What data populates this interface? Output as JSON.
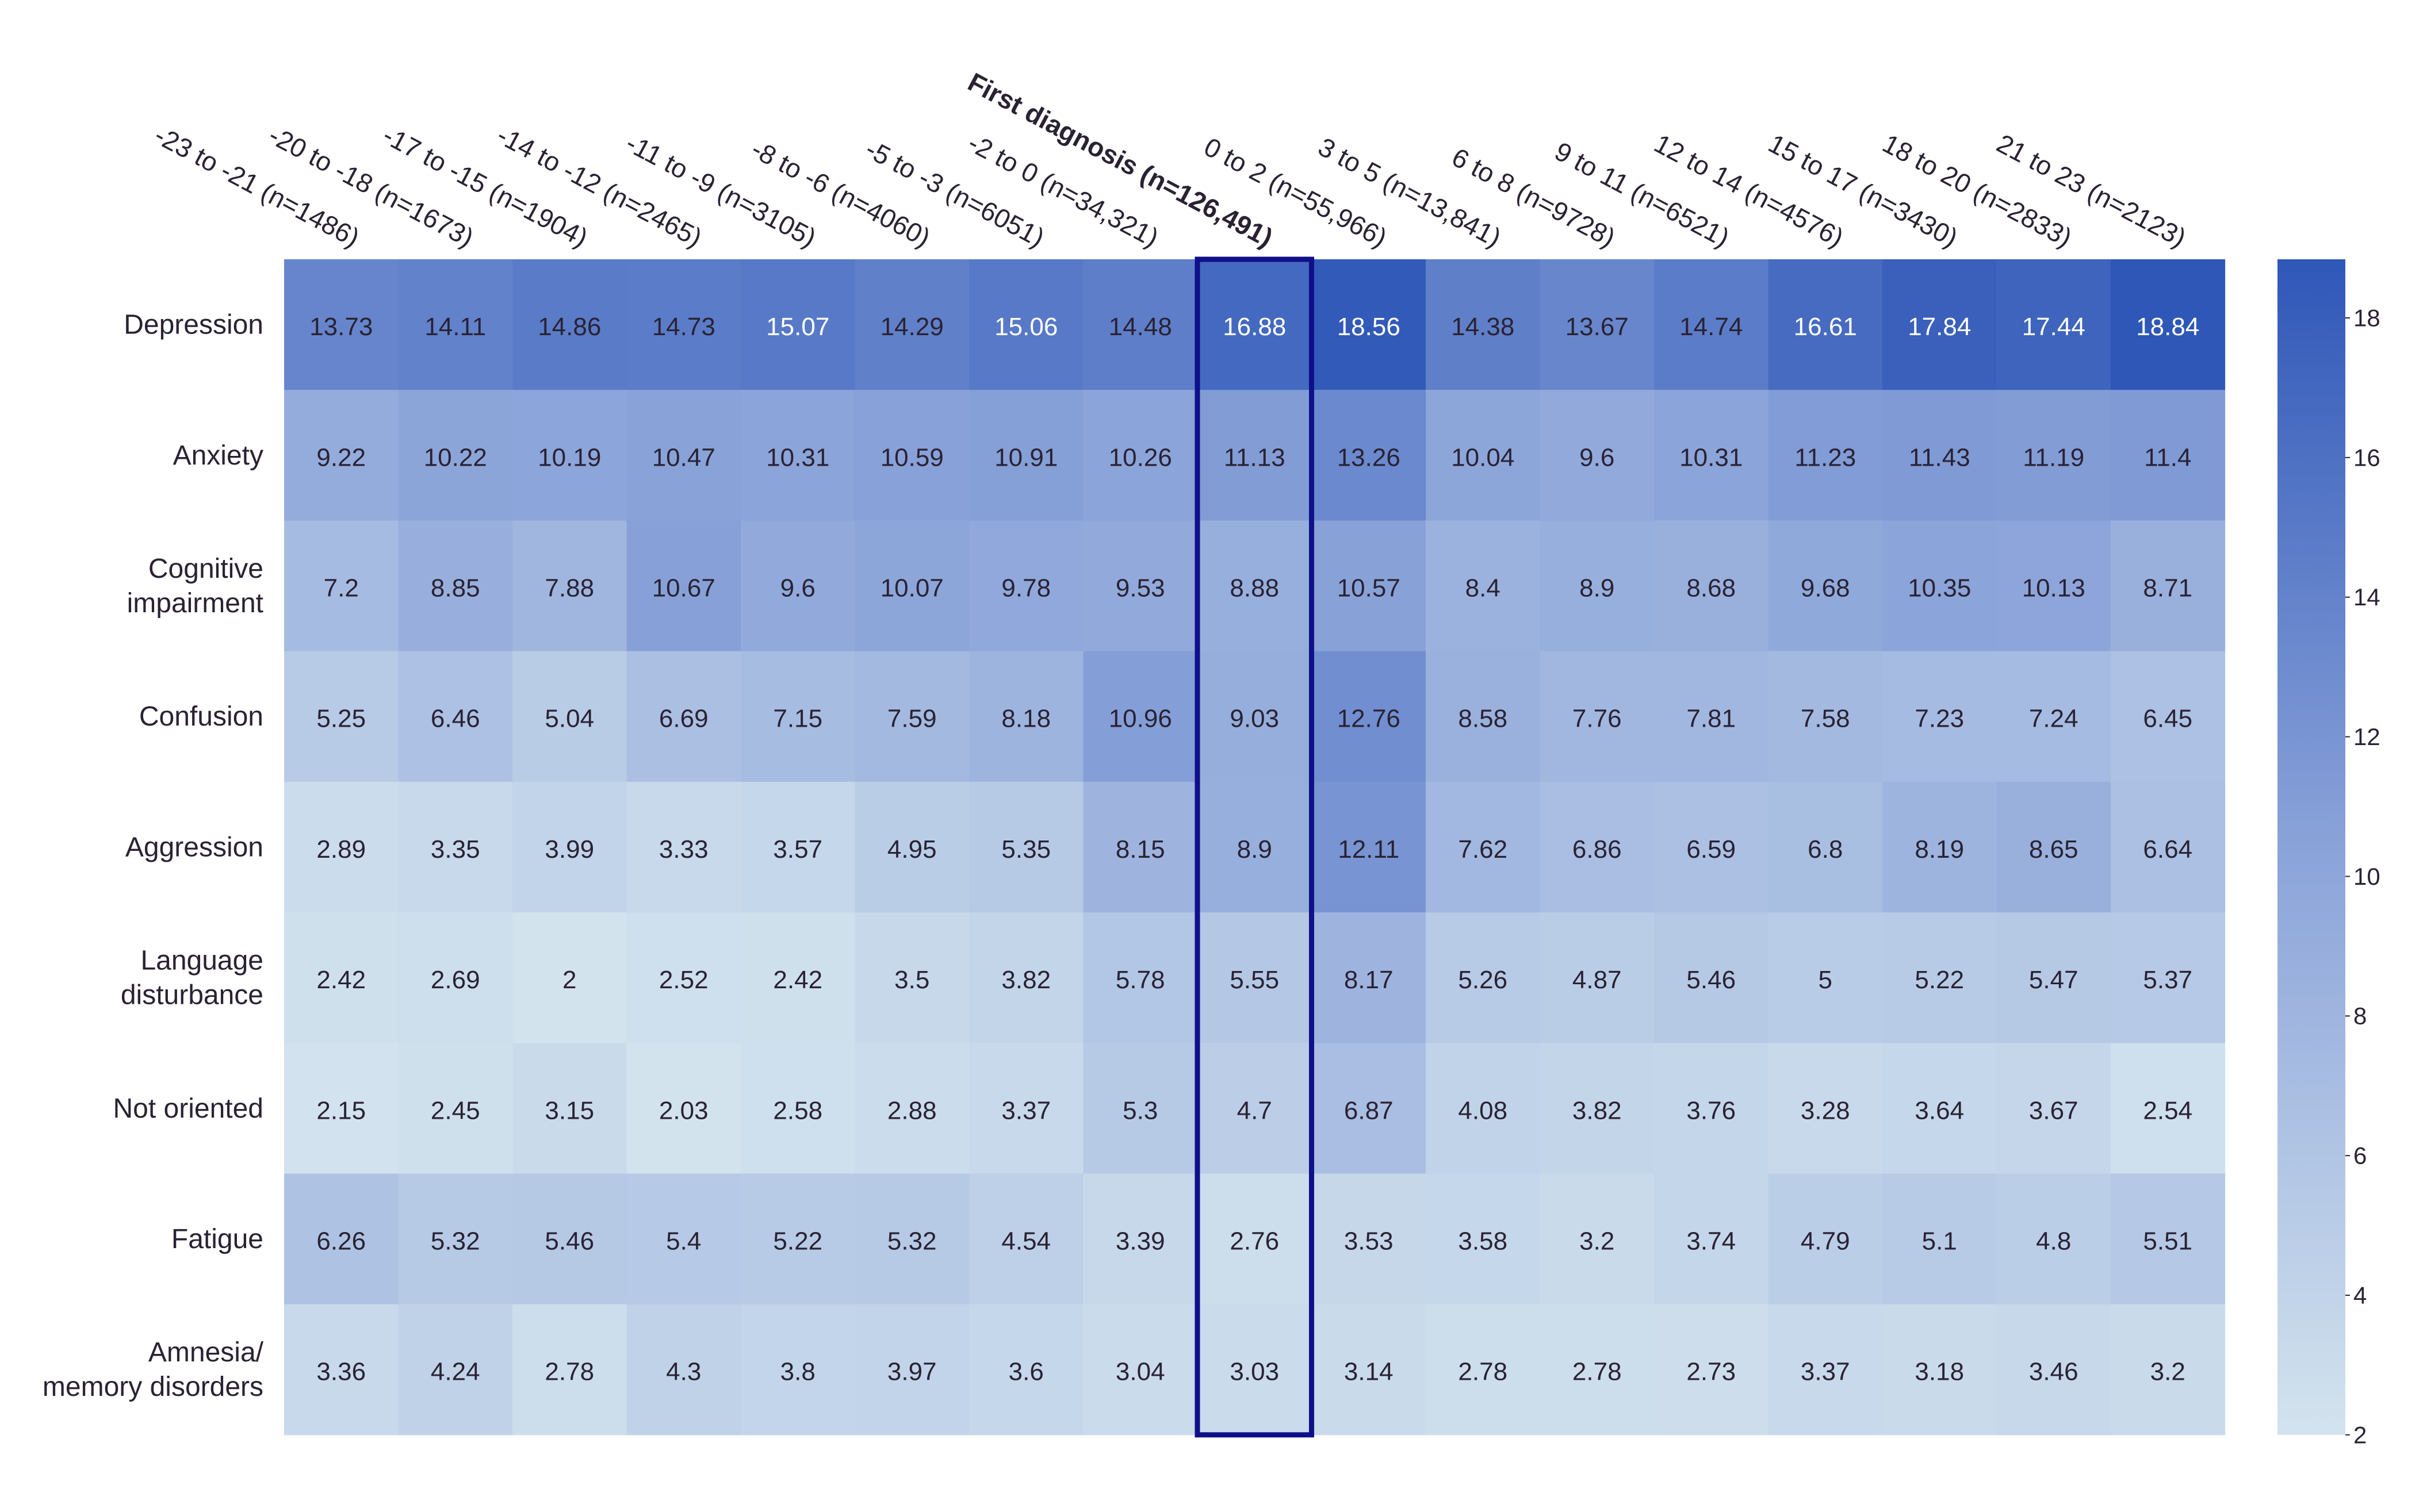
{
  "chart_data": {
    "type": "heatmap",
    "columns": [
      "-23 to -21 (n=1486)",
      "-20 to -18 (n=1673)",
      "-17 to -15 (n=1904)",
      "-14 to -12 (n=2465)",
      "-11 to -9 (n=3105)",
      "-8 to -6 (n=4060)",
      "-5 to -3 (n=6051)",
      "-2 to 0 (n=34,321)",
      "First diagnosis (n=126,491)",
      "0 to 2 (n=55,966)",
      "3 to 5 (n=13,841)",
      "6 to 8 (n=9728)",
      "9 to 11 (n=6521)",
      "12 to 14 (n=4576)",
      "15 to 17 (n=3430)",
      "18 to 20 (n=2833)",
      "21 to 23 (n=2123)"
    ],
    "highlighted_column": "First diagnosis (n=126,491)",
    "rows": [
      {
        "label": [
          "Depression"
        ],
        "values": [
          13.73,
          14.11,
          14.86,
          14.73,
          15.07,
          14.29,
          15.06,
          14.48,
          16.88,
          18.56,
          14.38,
          13.67,
          14.74,
          16.61,
          17.84,
          17.44,
          18.84
        ]
      },
      {
        "label": [
          "Anxiety"
        ],
        "values": [
          9.22,
          10.22,
          10.19,
          10.47,
          10.31,
          10.59,
          10.91,
          10.26,
          11.13,
          13.26,
          10.04,
          9.6,
          10.31,
          11.23,
          11.43,
          11.19,
          11.4
        ]
      },
      {
        "label": [
          "Cognitive",
          "impairment"
        ],
        "values": [
          7.2,
          8.85,
          7.88,
          10.67,
          9.6,
          10.07,
          9.78,
          9.53,
          8.88,
          10.57,
          8.4,
          8.9,
          8.68,
          9.68,
          10.35,
          10.13,
          8.71
        ]
      },
      {
        "label": [
          "Confusion"
        ],
        "values": [
          5.25,
          6.46,
          5.04,
          6.69,
          7.15,
          7.59,
          8.18,
          10.96,
          9.03,
          12.76,
          8.58,
          7.76,
          7.81,
          7.58,
          7.23,
          7.24,
          6.45
        ]
      },
      {
        "label": [
          "Aggression"
        ],
        "values": [
          2.89,
          3.35,
          3.99,
          3.33,
          3.57,
          4.95,
          5.35,
          8.15,
          8.9,
          12.11,
          7.62,
          6.86,
          6.59,
          6.8,
          8.19,
          8.65,
          6.64
        ]
      },
      {
        "label": [
          "Language",
          "disturbance"
        ],
        "values": [
          2.42,
          2.69,
          2,
          2.52,
          2.42,
          3.5,
          3.82,
          5.78,
          5.55,
          8.17,
          5.26,
          4.87,
          5.46,
          5,
          5.22,
          5.47,
          5.37
        ]
      },
      {
        "label": [
          "Not oriented"
        ],
        "values": [
          2.15,
          2.45,
          3.15,
          2.03,
          2.58,
          2.88,
          3.37,
          5.3,
          4.7,
          6.87,
          4.08,
          3.82,
          3.76,
          3.28,
          3.64,
          3.67,
          2.54
        ]
      },
      {
        "label": [
          "Fatigue"
        ],
        "values": [
          6.26,
          5.32,
          5.46,
          5.4,
          5.22,
          5.32,
          4.54,
          3.39,
          2.76,
          3.53,
          3.58,
          3.2,
          3.74,
          4.79,
          5.1,
          4.8,
          5.51
        ]
      },
      {
        "label": [
          "Amnesia/",
          "memory disorders"
        ],
        "values": [
          3.36,
          4.24,
          2.78,
          4.3,
          3.8,
          3.97,
          3.6,
          3.04,
          3.03,
          3.14,
          2.78,
          2.78,
          2.73,
          3.37,
          3.18,
          3.46,
          3.2
        ]
      }
    ],
    "colorbar": {
      "min": 2,
      "max": 18.84,
      "ticks": [
        2,
        4,
        6,
        8,
        10,
        12,
        14,
        16,
        18
      ]
    },
    "colors": {
      "low": "#d3e3ee",
      "mid": "#8aa3d9",
      "high": "#2f57b8",
      "highlight_border": "#10108a",
      "text_dark": "#2a2233",
      "text_light": "#ffffff"
    }
  }
}
